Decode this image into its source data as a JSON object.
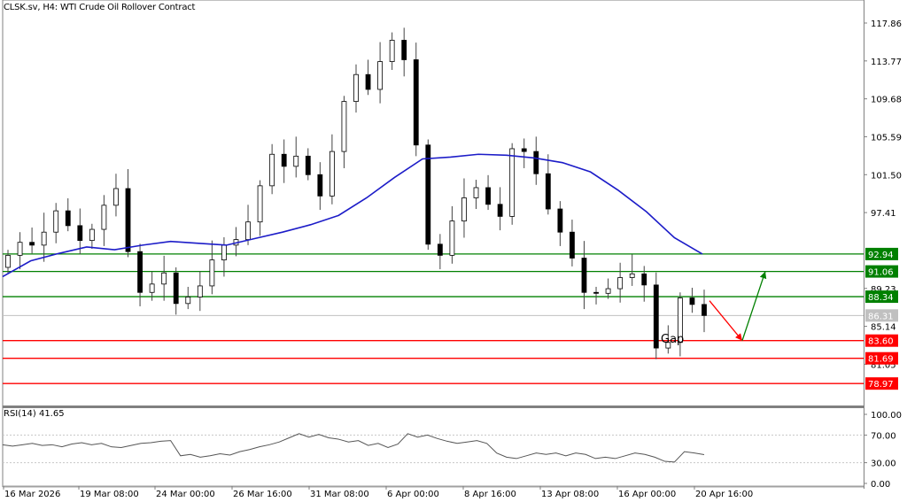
{
  "header": {
    "symbol": "CLSK.sv",
    "timeframe": "H4",
    "title": "CLSK.sv, H4:  WTI Crude Oil Rollover Contract"
  },
  "rsi_panel": {
    "label": "RSI(14) 41.65",
    "period": 14,
    "value": 41.65
  },
  "colors": {
    "background": "#ffffff",
    "candle": "#000000",
    "ma_line": "#1c1cc8",
    "resistance": "#008000",
    "support": "#ff0000",
    "current_price": "#c0c0c0",
    "rsi_line": "#555555",
    "axis": "#808080"
  },
  "chart_data": [
    {
      "type": "candlestick",
      "title": "CLSK.sv, H4: WTI Crude Oil Rollover Contract",
      "xlabel": "",
      "ylabel": "",
      "ylim": [
        78.0,
        119.0
      ],
      "y_ticks": [
        "117.86",
        "113.77",
        "109.68",
        "105.59",
        "101.50",
        "97.41",
        "92.94",
        "91.06",
        "89.23",
        "88.34",
        "86.31",
        "85.14",
        "83.60",
        "81.69",
        "81.05",
        "78.97"
      ],
      "x_ticks": [
        "16 Mar 2026",
        "19 Mar 08:00",
        "24 Mar 00:00",
        "26 Mar 16:00",
        "31 Mar 08:00",
        "6 Apr 00:00",
        "8 Apr 16:00",
        "13 Apr 08:00",
        "16 Apr 00:00",
        "20 Apr 16:00"
      ],
      "grid": false,
      "overlays": {
        "moving_average": {
          "color": "#1c1cc8",
          "approx_values": [
            90.5,
            92.2,
            93.0,
            93.7,
            93.4,
            93.9,
            94.3,
            94.1,
            93.9,
            94.6,
            95.3,
            96.1,
            97.1,
            99.0,
            101.2,
            103.2,
            103.4,
            103.7,
            103.6,
            103.3,
            102.8,
            101.8,
            99.8,
            97.5,
            94.7,
            92.94
          ]
        },
        "resistance_levels": [
          92.94,
          91.06,
          88.34
        ],
        "support_levels": [
          83.6,
          81.69,
          78.97
        ],
        "current_price": 86.31,
        "annotations": [
          {
            "text": "Gap",
            "x": "16 Apr 00:00",
            "y": 84.4
          },
          {
            "type": "arrow",
            "color": "red",
            "from": 87.9,
            "to": 83.6,
            "direction": "down"
          },
          {
            "type": "arrow",
            "color": "green",
            "from": 83.6,
            "to": 91.06,
            "direction": "up"
          }
        ]
      },
      "series": [
        {
          "name": "Close (approx)",
          "values": [
            92.8,
            94.2,
            93.9,
            95.3,
            97.6,
            96.0,
            94.4,
            95.6,
            98.2,
            100.0,
            93.2,
            88.8,
            89.7,
            90.9,
            87.6,
            88.3,
            89.5,
            92.3,
            93.9,
            94.5,
            96.4,
            100.3,
            103.7,
            102.4,
            103.5,
            101.5,
            99.2,
            104.0,
            109.4,
            112.3,
            110.7,
            113.7,
            116.0,
            113.9,
            104.7,
            94.0,
            92.8,
            96.5,
            99.0,
            100.1,
            98.3,
            97.0,
            104.3,
            104.0,
            101.6,
            97.8,
            95.3,
            92.5,
            88.8,
            88.7,
            89.2,
            90.4,
            90.8,
            89.6,
            82.8,
            83.4,
            88.2,
            87.5,
            86.31
          ]
        }
      ]
    },
    {
      "type": "line",
      "title": "RSI(14) 41.65",
      "ylim": [
        0,
        100
      ],
      "y_ticks": [
        "100.00",
        "70.00",
        "30.00",
        "0.00"
      ],
      "levels": [
        70,
        30
      ],
      "series": [
        {
          "name": "RSI(14)",
          "values": [
            56,
            54,
            56,
            58,
            55,
            56,
            53,
            57,
            59,
            56,
            58,
            53,
            52,
            55,
            58,
            59,
            61,
            62,
            40,
            42,
            38,
            40,
            43,
            41,
            46,
            49,
            53,
            56,
            60,
            66,
            72,
            67,
            71,
            66,
            64,
            60,
            62,
            55,
            58,
            52,
            57,
            72,
            67,
            70,
            65,
            61,
            58,
            60,
            62,
            58,
            44,
            38,
            36,
            40,
            44,
            42,
            44,
            40,
            44,
            42,
            36,
            38,
            36,
            40,
            44,
            42,
            38,
            32,
            31,
            46,
            44,
            41.65
          ]
        }
      ]
    }
  ]
}
